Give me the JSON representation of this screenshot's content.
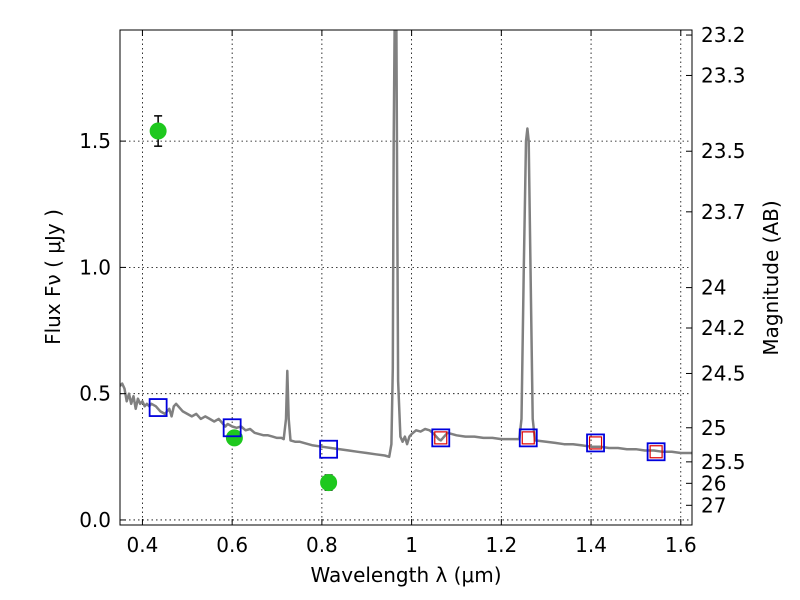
{
  "chart_data": {
    "type": "scatter",
    "xlabel": "Wavelength  λ (μm)",
    "ylabel": "Flux  Fν  ( μJy )",
    "ylabel_right": "Magnitude (AB)",
    "xlim": [
      0.35,
      1.625
    ],
    "ylim": [
      -0.02,
      1.94
    ],
    "x_ticks": [
      0.4,
      0.6,
      0.8,
      1.0,
      1.2,
      1.4,
      1.6
    ],
    "x_tick_labels": [
      "0.4",
      "0.6",
      "0.8",
      "1",
      "1.2",
      "1.4",
      "1.6"
    ],
    "y_ticks": [
      0.0,
      0.5,
      1.0,
      1.5
    ],
    "y_tick_labels": [
      "0.0",
      "0.5",
      "1.0",
      "1.5"
    ],
    "right_ticks": [
      {
        "label": "23.2",
        "flux": 1.92
      },
      {
        "label": "23.3",
        "flux": 1.76
      },
      {
        "label": "23.5",
        "flux": 1.46
      },
      {
        "label": "23.7",
        "flux": 1.22
      },
      {
        "label": "24",
        "flux": 0.92
      },
      {
        "label": "24.2",
        "flux": 0.76
      },
      {
        "label": "24.5",
        "flux": 0.58
      },
      {
        "label": "25",
        "flux": 0.365
      },
      {
        "label": "25.5",
        "flux": 0.23
      },
      {
        "label": "26",
        "flux": 0.145
      },
      {
        "label": "27",
        "flux": 0.058
      }
    ],
    "grid": true,
    "series": [
      {
        "kind": "line",
        "color": "#808080",
        "points": [
          [
            0.35,
            0.53
          ],
          [
            0.355,
            0.54
          ],
          [
            0.36,
            0.52
          ],
          [
            0.365,
            0.47
          ],
          [
            0.37,
            0.5
          ],
          [
            0.375,
            0.46
          ],
          [
            0.38,
            0.49
          ],
          [
            0.385,
            0.44
          ],
          [
            0.39,
            0.48
          ],
          [
            0.395,
            0.46
          ],
          [
            0.4,
            0.47
          ],
          [
            0.405,
            0.45
          ],
          [
            0.41,
            0.46
          ],
          [
            0.415,
            0.45
          ],
          [
            0.42,
            0.46
          ],
          [
            0.43,
            0.45
          ],
          [
            0.44,
            0.43
          ],
          [
            0.45,
            0.42
          ],
          [
            0.46,
            0.44
          ],
          [
            0.465,
            0.41
          ],
          [
            0.47,
            0.45
          ],
          [
            0.475,
            0.46
          ],
          [
            0.48,
            0.45
          ],
          [
            0.49,
            0.43
          ],
          [
            0.5,
            0.42
          ],
          [
            0.51,
            0.41
          ],
          [
            0.52,
            0.42
          ],
          [
            0.53,
            0.4
          ],
          [
            0.54,
            0.41
          ],
          [
            0.55,
            0.4
          ],
          [
            0.56,
            0.39
          ],
          [
            0.57,
            0.4
          ],
          [
            0.58,
            0.38
          ],
          [
            0.585,
            0.37
          ],
          [
            0.59,
            0.38
          ],
          [
            0.6,
            0.37
          ],
          [
            0.61,
            0.365
          ],
          [
            0.62,
            0.37
          ],
          [
            0.63,
            0.355
          ],
          [
            0.64,
            0.36
          ],
          [
            0.65,
            0.345
          ],
          [
            0.66,
            0.34
          ],
          [
            0.67,
            0.335
          ],
          [
            0.68,
            0.335
          ],
          [
            0.69,
            0.33
          ],
          [
            0.7,
            0.325
          ],
          [
            0.71,
            0.325
          ],
          [
            0.715,
            0.32
          ],
          [
            0.72,
            0.4
          ],
          [
            0.723,
            0.59
          ],
          [
            0.726,
            0.4
          ],
          [
            0.73,
            0.315
          ],
          [
            0.74,
            0.31
          ],
          [
            0.75,
            0.31
          ],
          [
            0.76,
            0.305
          ],
          [
            0.78,
            0.295
          ],
          [
            0.8,
            0.29
          ],
          [
            0.82,
            0.285
          ],
          [
            0.84,
            0.28
          ],
          [
            0.86,
            0.275
          ],
          [
            0.88,
            0.27
          ],
          [
            0.9,
            0.265
          ],
          [
            0.92,
            0.26
          ],
          [
            0.94,
            0.255
          ],
          [
            0.95,
            0.25
          ],
          [
            0.955,
            0.3
          ],
          [
            0.958,
            0.6
          ],
          [
            0.96,
            1.5
          ],
          [
            0.962,
            1.94
          ],
          [
            0.966,
            1.94
          ],
          [
            0.968,
            1.2
          ],
          [
            0.97,
            0.55
          ],
          [
            0.975,
            0.33
          ],
          [
            0.98,
            0.31
          ],
          [
            0.985,
            0.33
          ],
          [
            0.99,
            0.3
          ],
          [
            0.995,
            0.33
          ],
          [
            1.0,
            0.34
          ],
          [
            1.01,
            0.355
          ],
          [
            1.02,
            0.35
          ],
          [
            1.03,
            0.36
          ],
          [
            1.04,
            0.355
          ],
          [
            1.05,
            0.34
          ],
          [
            1.06,
            0.32
          ],
          [
            1.065,
            0.315
          ],
          [
            1.07,
            0.325
          ],
          [
            1.08,
            0.345
          ],
          [
            1.09,
            0.34
          ],
          [
            1.1,
            0.335
          ],
          [
            1.12,
            0.33
          ],
          [
            1.14,
            0.33
          ],
          [
            1.16,
            0.325
          ],
          [
            1.18,
            0.325
          ],
          [
            1.2,
            0.32
          ],
          [
            1.22,
            0.32
          ],
          [
            1.24,
            0.32
          ],
          [
            1.245,
            0.4
          ],
          [
            1.25,
            1.0
          ],
          [
            1.255,
            1.5
          ],
          [
            1.258,
            1.55
          ],
          [
            1.261,
            1.5
          ],
          [
            1.265,
            1.0
          ],
          [
            1.27,
            0.4
          ],
          [
            1.275,
            0.315
          ],
          [
            1.3,
            0.31
          ],
          [
            1.32,
            0.305
          ],
          [
            1.34,
            0.3
          ],
          [
            1.36,
            0.3
          ],
          [
            1.38,
            0.295
          ],
          [
            1.4,
            0.29
          ],
          [
            1.42,
            0.29
          ],
          [
            1.44,
            0.285
          ],
          [
            1.46,
            0.285
          ],
          [
            1.48,
            0.28
          ],
          [
            1.5,
            0.28
          ],
          [
            1.52,
            0.275
          ],
          [
            1.54,
            0.275
          ],
          [
            1.56,
            0.27
          ],
          [
            1.58,
            0.27
          ],
          [
            1.6,
            0.265
          ],
          [
            1.625,
            0.265
          ]
        ]
      },
      {
        "kind": "errorbar",
        "marker": "circle",
        "color": "#1ec81e",
        "points": [
          {
            "x": 0.435,
            "y": 1.54,
            "yerr": 0.06
          },
          {
            "x": 0.605,
            "y": 0.325,
            "yerr": 0.025
          },
          {
            "x": 0.815,
            "y": 0.148,
            "yerr": 0.03
          }
        ]
      },
      {
        "kind": "markers",
        "marker": "square",
        "color": "#0000dd",
        "points": [
          {
            "x": 0.435,
            "y": 0.445
          },
          {
            "x": 0.6,
            "y": 0.365
          },
          {
            "x": 0.815,
            "y": 0.28
          },
          {
            "x": 1.065,
            "y": 0.325
          },
          {
            "x": 1.26,
            "y": 0.325
          },
          {
            "x": 1.41,
            "y": 0.305
          },
          {
            "x": 1.545,
            "y": 0.27
          }
        ]
      },
      {
        "kind": "markers",
        "marker": "square",
        "color": "#dd0000",
        "points": [
          {
            "x": 1.065,
            "y": 0.325
          },
          {
            "x": 1.26,
            "y": 0.325
          },
          {
            "x": 1.41,
            "y": 0.305
          },
          {
            "x": 1.545,
            "y": 0.27
          }
        ]
      }
    ]
  }
}
